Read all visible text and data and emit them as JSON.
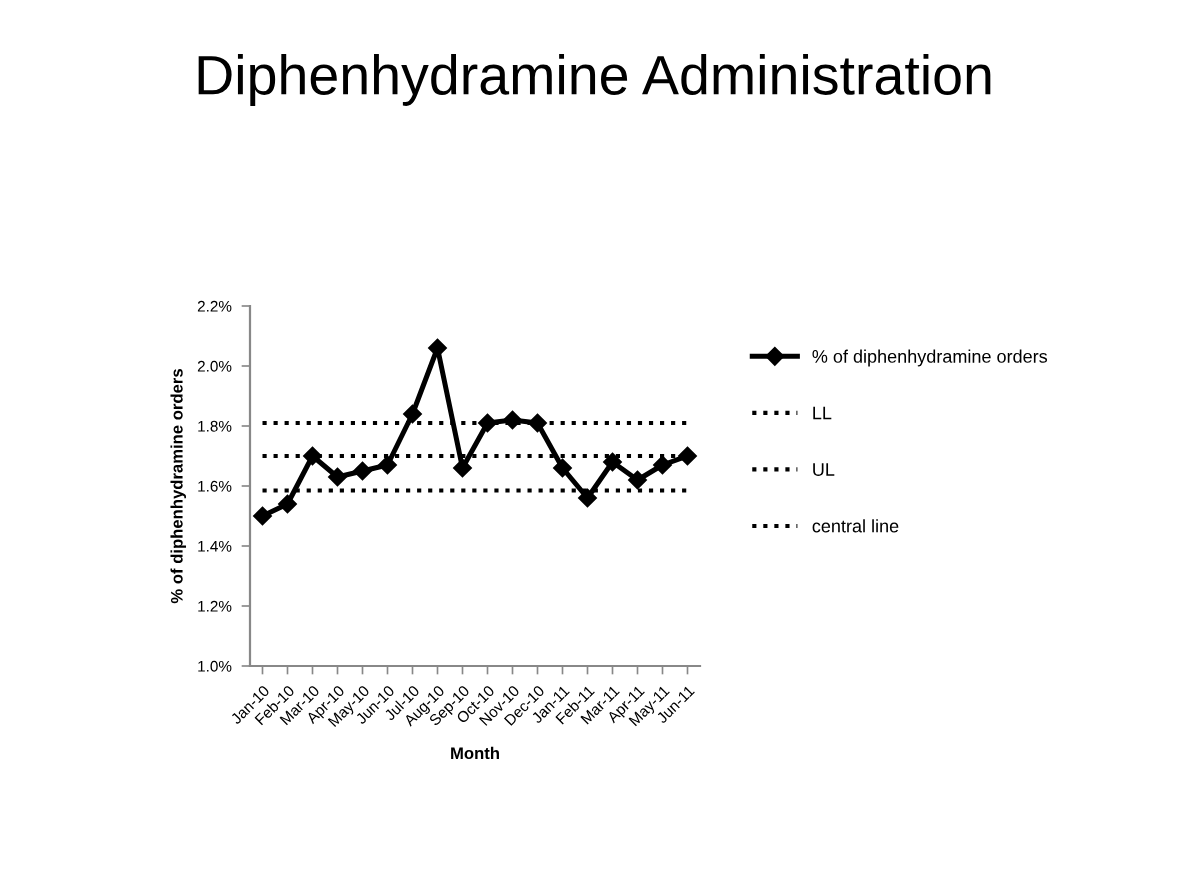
{
  "chart_data": {
    "type": "line",
    "title": "Diphenhydramine Administration",
    "xlabel": "Month",
    "ylabel": "% of diphenhydramine orders",
    "categories": [
      "Jan-10",
      "Feb-10",
      "Mar-10",
      "Apr-10",
      "May-10",
      "Jun-10",
      "Jul-10",
      "Aug-10",
      "Sep-10",
      "Oct-10",
      "Nov-10",
      "Dec-10",
      "Jan-11",
      "Feb-11",
      "Mar-11",
      "Apr-11",
      "May-11",
      "Jun-11"
    ],
    "series": [
      {
        "name": "% of diphenhydramine orders",
        "color": "#000000",
        "marker": "diamond",
        "line_style": "solid",
        "values": [
          1.5,
          1.54,
          1.7,
          1.63,
          1.65,
          1.67,
          1.84,
          2.06,
          1.66,
          1.81,
          1.82,
          1.81,
          1.66,
          1.56,
          1.68,
          1.62,
          1.67,
          1.7
        ]
      },
      {
        "name": "LL",
        "color": "#000000",
        "marker": "none",
        "line_style": "dotted",
        "values": [
          1.585,
          1.585,
          1.585,
          1.585,
          1.585,
          1.585,
          1.585,
          1.585,
          1.585,
          1.585,
          1.585,
          1.585,
          1.585,
          1.585,
          1.585,
          1.585,
          1.585,
          1.585
        ]
      },
      {
        "name": "UL",
        "color": "#000000",
        "marker": "none",
        "line_style": "dotted",
        "values": [
          1.81,
          1.81,
          1.81,
          1.81,
          1.81,
          1.81,
          1.81,
          1.81,
          1.81,
          1.81,
          1.81,
          1.81,
          1.81,
          1.81,
          1.81,
          1.81,
          1.81,
          1.81
        ]
      },
      {
        "name": "central line",
        "color": "#000000",
        "marker": "none",
        "line_style": "dotted",
        "values": [
          1.7,
          1.7,
          1.7,
          1.7,
          1.7,
          1.7,
          1.7,
          1.7,
          1.7,
          1.7,
          1.7,
          1.7,
          1.7,
          1.7,
          1.7,
          1.7,
          1.7,
          1.7
        ]
      }
    ],
    "ylim": [
      1.0,
      2.2
    ],
    "yticks": [
      {
        "value": 1.0,
        "label": "1.0%"
      },
      {
        "value": 1.2,
        "label": "1.2%"
      },
      {
        "value": 1.4,
        "label": "1.4%"
      },
      {
        "value": 1.6,
        "label": "1.6%"
      },
      {
        "value": 1.8,
        "label": "1.8%"
      },
      {
        "value": 2.0,
        "label": "2.0%"
      },
      {
        "value": 2.2,
        "label": "2.2%"
      }
    ],
    "grid": false,
    "legend": "right"
  }
}
